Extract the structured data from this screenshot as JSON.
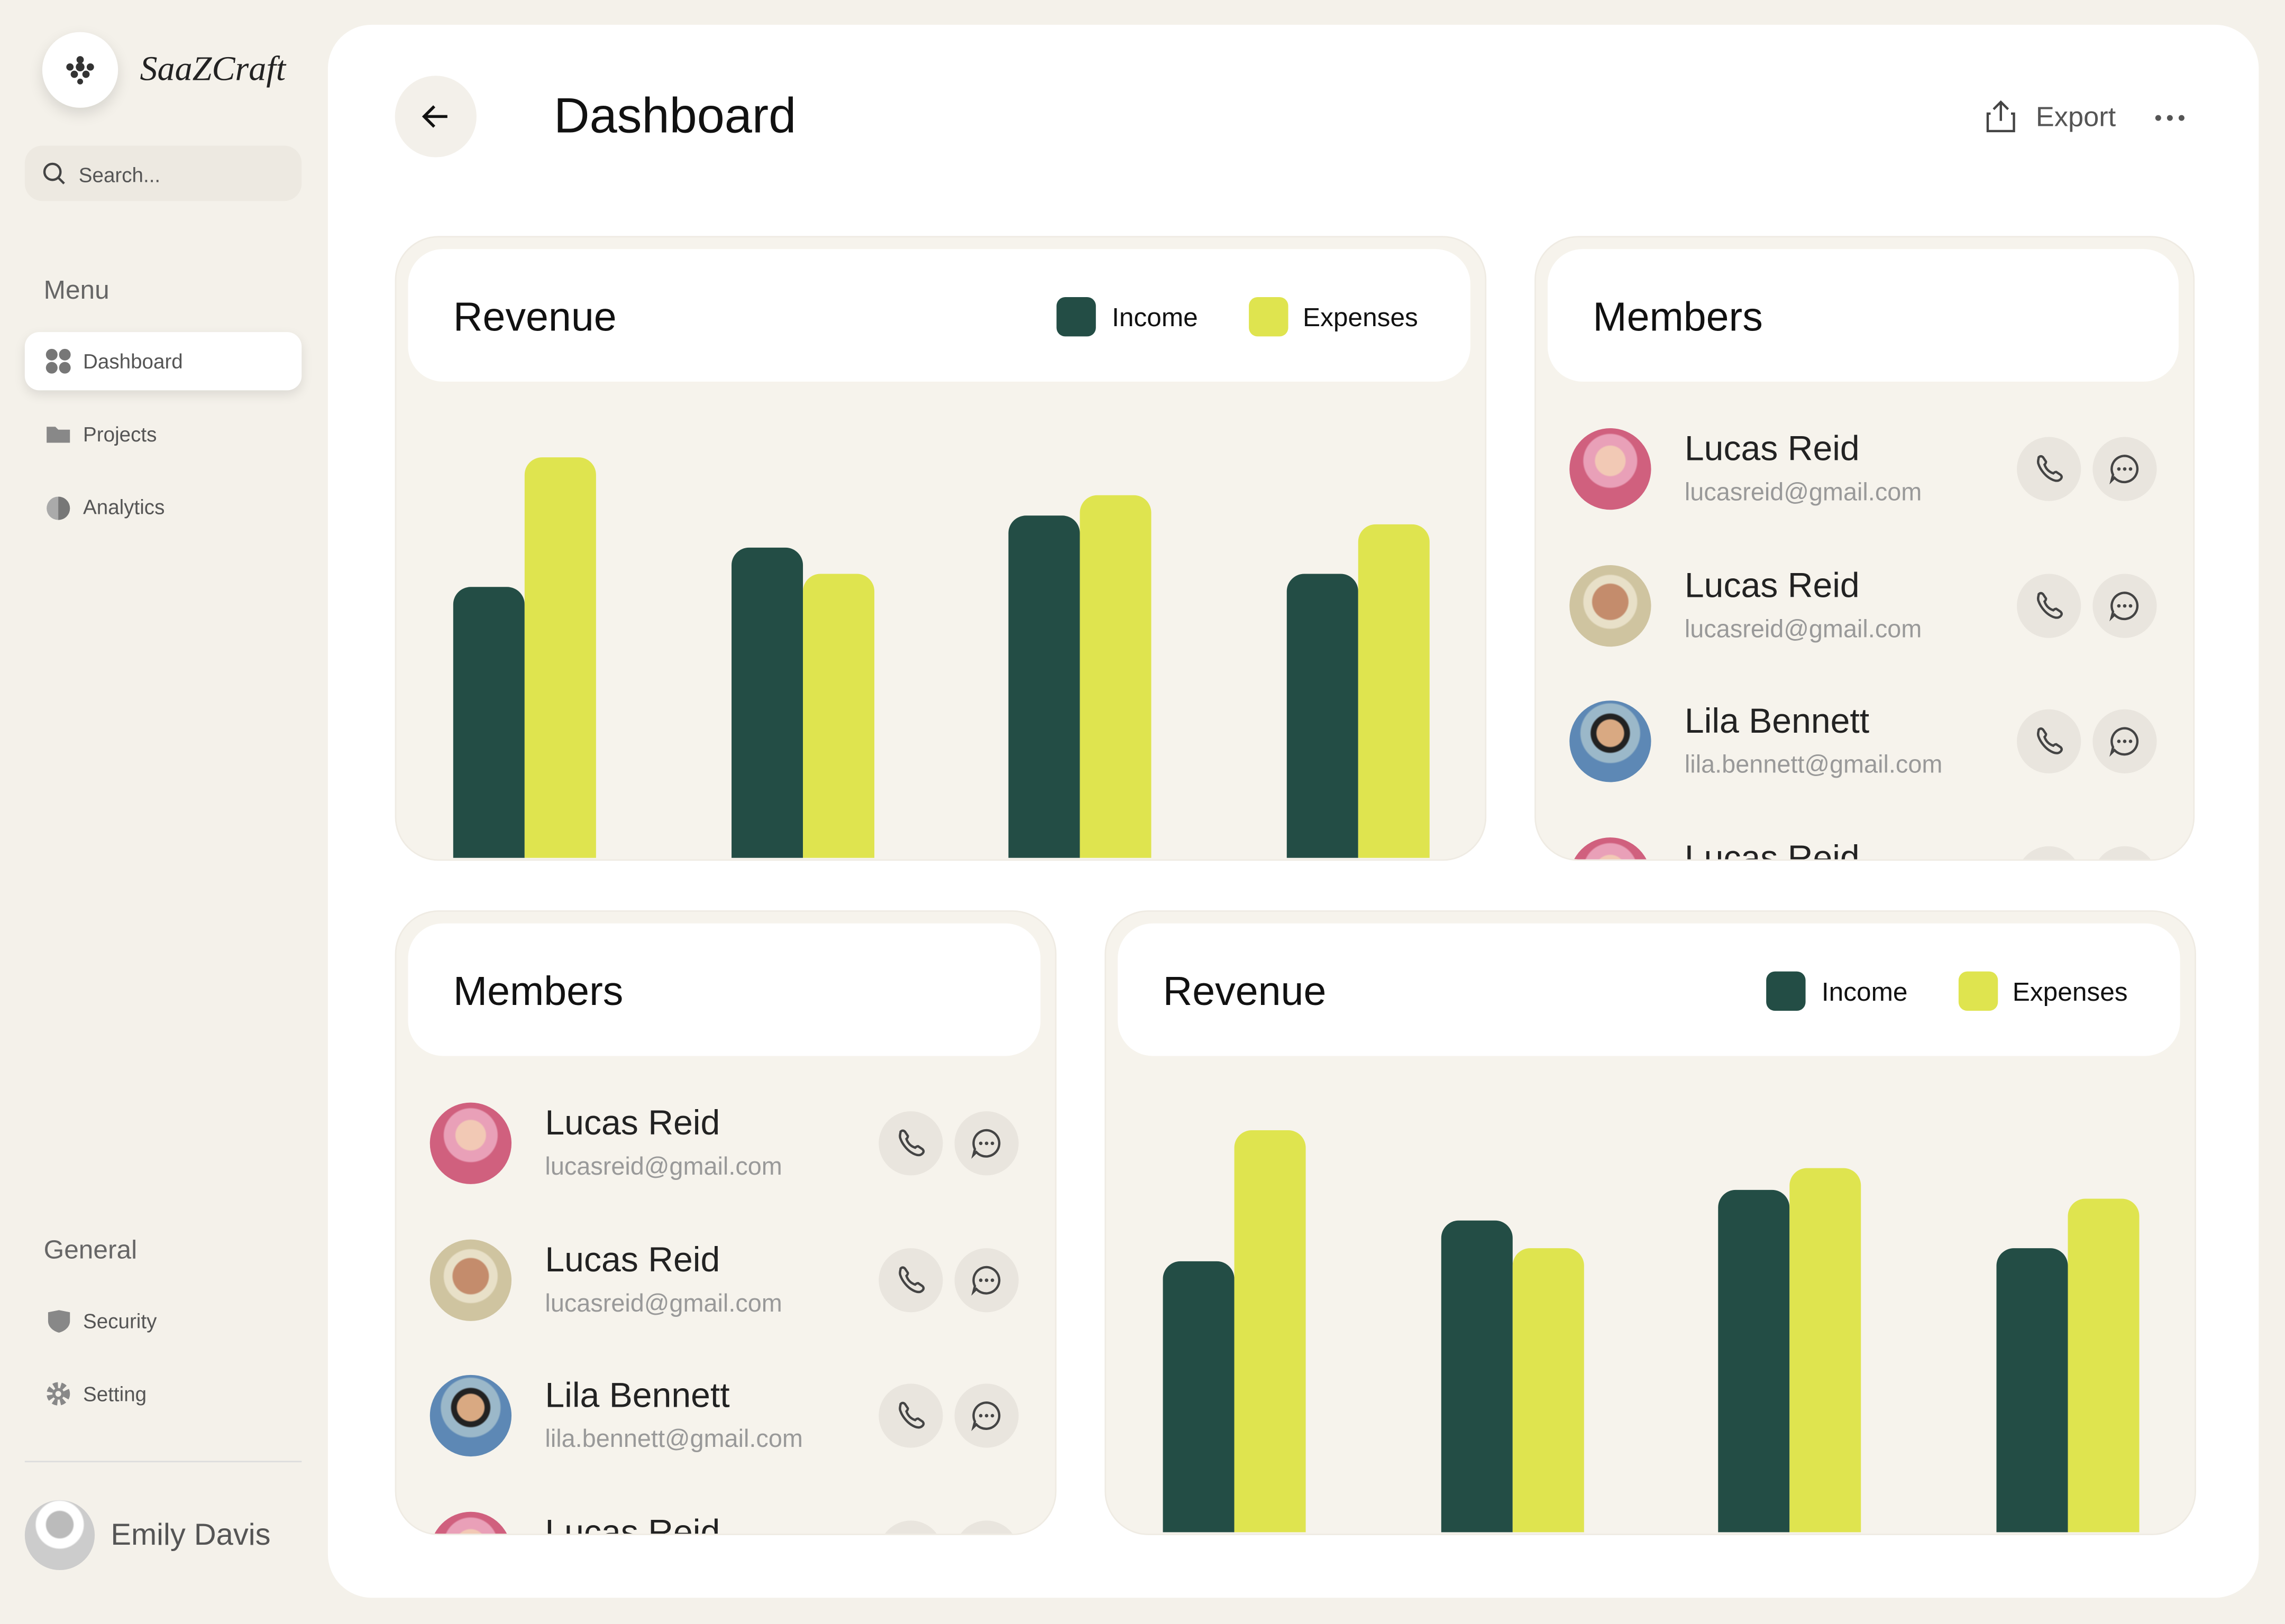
{
  "sidebar": {
    "brand": "SaaZCraft",
    "search_placeholder": "Search...",
    "menu_title": "Menu",
    "menu": [
      "Dashboard",
      "Projects",
      "Analytics"
    ],
    "general_title": "General",
    "general": [
      "Security",
      "Setting"
    ],
    "user": "Emily Davis"
  },
  "header": {
    "title": "Dashboard",
    "export": "Export"
  },
  "chart_data": [
    {
      "type": "bar",
      "title": "Revenue",
      "ylim": [
        0,
        290
      ],
      "series": [
        {
          "name": "Income",
          "color": "#234d45",
          "values": [
            186,
            213,
            235,
            195
          ]
        },
        {
          "name": "Expenses",
          "color": "#dfe44f",
          "values": [
            275,
            195,
            249,
            229
          ]
        }
      ]
    },
    {
      "type": "bar",
      "title": "Revenue",
      "ylim": [
        0,
        290
      ],
      "series": [
        {
          "name": "Income",
          "color": "#234d45",
          "values": [
            186,
            214,
            235,
            195
          ]
        },
        {
          "name": "Expenses",
          "color": "#dfe44f",
          "values": [
            276,
            195,
            250,
            229
          ]
        }
      ]
    }
  ],
  "members_panels": [
    {
      "title": "Members",
      "members": [
        {
          "name": "Lucas Reid",
          "email": "lucasreid@gmail.com"
        },
        {
          "name": "Lucas Reid",
          "email": "lucasreid@gmail.com"
        },
        {
          "name": "Lila Bennett",
          "email": "lila.bennett@gmail.com"
        },
        {
          "name": "Lucas Reid"
        }
      ]
    },
    {
      "title": "Members",
      "members": [
        {
          "name": "Lucas Reid",
          "email": "lucasreid@gmail.com"
        },
        {
          "name": "Lucas Reid",
          "email": "lucasreid@gmail.com"
        },
        {
          "name": "Lila Bennett",
          "email": "lila.bennett@gmail.com"
        },
        {
          "name": "Lucas Reid"
        }
      ]
    }
  ]
}
